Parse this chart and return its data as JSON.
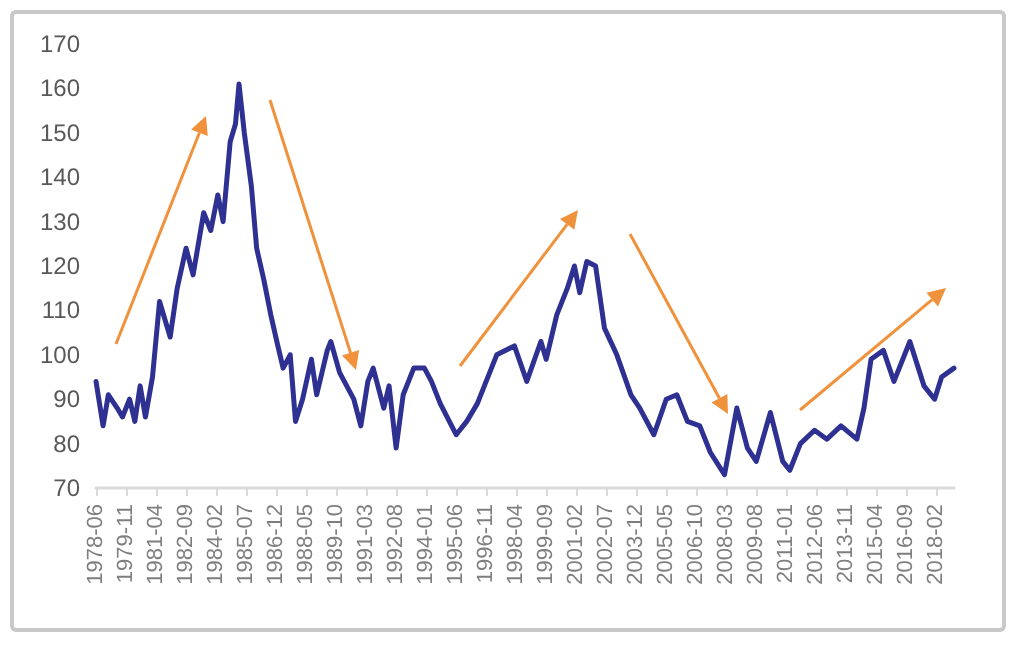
{
  "chart_data": {
    "type": "line",
    "marker": "none",
    "x": [
      "1978-06",
      "1978-10",
      "1979-01",
      "1979-06",
      "1979-09",
      "1980-01",
      "1980-04",
      "1980-07",
      "1980-10",
      "1981-02",
      "1981-06",
      "1981-12",
      "1982-04",
      "1982-09",
      "1983-01",
      "1983-07",
      "1983-11",
      "1984-03",
      "1984-06",
      "1984-10",
      "1985-01",
      "1985-03",
      "1985-06",
      "1985-10",
      "1986-01",
      "1986-05",
      "1986-09",
      "1987-01",
      "1987-04",
      "1987-08",
      "1987-11",
      "1988-03",
      "1988-08",
      "1988-11",
      "1989-05",
      "1989-07",
      "1989-12",
      "1990-08",
      "1990-12",
      "1991-04",
      "1991-07",
      "1992-01",
      "1992-04",
      "1992-08",
      "1992-12",
      "1993-06",
      "1993-12",
      "1994-04",
      "1994-09",
      "1995-06",
      "1995-12",
      "1996-06",
      "1996-11",
      "1997-05",
      "1998-03",
      "1998-10",
      "1999-06",
      "1999-09",
      "2000-03",
      "2000-09",
      "2001-01",
      "2001-04",
      "2001-08",
      "2002-01",
      "2002-06",
      "2003-01",
      "2003-09",
      "2004-02",
      "2004-10",
      "2005-05",
      "2005-11",
      "2006-05",
      "2006-12",
      "2007-06",
      "2008-02",
      "2008-09",
      "2009-03",
      "2009-08",
      "2010-04",
      "2010-11",
      "2011-03",
      "2011-09",
      "2012-05",
      "2012-12",
      "2013-08",
      "2014-05",
      "2014-09",
      "2015-01",
      "2015-08",
      "2016-02",
      "2016-11",
      "2017-07",
      "2018-01",
      "2018-05",
      "2018-12"
    ],
    "series": [
      {
        "color": "#2e3192",
        "values": [
          94,
          84,
          91,
          88,
          86,
          90,
          85,
          93,
          86,
          95,
          112,
          104,
          115,
          124,
          118,
          132,
          128,
          136,
          130,
          148,
          152,
          161,
          150,
          138,
          124,
          117,
          109,
          102,
          97,
          100,
          85,
          90,
          99,
          91,
          101,
          103,
          96,
          90,
          84,
          94,
          97,
          88,
          93,
          79,
          91,
          97,
          97,
          94,
          89,
          82,
          85,
          89,
          94,
          100,
          102,
          94,
          103,
          99,
          109,
          115,
          120,
          114,
          121,
          120,
          106,
          100,
          91,
          88,
          82,
          90,
          91,
          85,
          84,
          78,
          73,
          88,
          79,
          76,
          87,
          76,
          74,
          80,
          83,
          81,
          84,
          81,
          88,
          99,
          101,
          94,
          103,
          93,
          90,
          95,
          97
        ]
      }
    ],
    "xlim": [
      "1978-06",
      "2018-12"
    ],
    "xticks": [
      "1978-06",
      "1979-11",
      "1981-04",
      "1982-09",
      "1984-02",
      "1985-07",
      "1986-12",
      "1988-05",
      "1989-10",
      "1991-03",
      "1992-08",
      "1994-01",
      "1995-06",
      "1996-11",
      "1998-04",
      "1999-09",
      "2001-02",
      "2002-07",
      "2003-12",
      "2005-05",
      "2006-10",
      "2008-03",
      "2009-08",
      "2011-01",
      "2012-06",
      "2013-11",
      "2015-04",
      "2016-09",
      "2018-02"
    ],
    "ylim": [
      70,
      170
    ],
    "yticks": [
      70,
      80,
      90,
      100,
      110,
      120,
      130,
      140,
      150,
      160,
      170
    ]
  }
}
